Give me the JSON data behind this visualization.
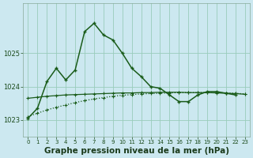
{
  "background_color": "#cce8f0",
  "grid_color": "#99ccbb",
  "line_color": "#1a5c1a",
  "xlabel": "Graphe pression niveau de la mer (hPa)",
  "xlabel_fontsize": 7.5,
  "yticks": [
    1023,
    1024,
    1025
  ],
  "xticks": [
    0,
    1,
    2,
    3,
    4,
    5,
    6,
    7,
    8,
    9,
    10,
    11,
    12,
    13,
    14,
    15,
    16,
    17,
    18,
    19,
    20,
    21,
    22,
    23
  ],
  "xlim": [
    -0.5,
    23.5
  ],
  "ylim": [
    1022.5,
    1026.5
  ],
  "series_main": {
    "x": [
      0,
      1,
      2,
      3,
      4,
      5,
      6,
      7,
      8,
      9,
      10,
      11,
      12,
      13,
      14,
      15,
      16,
      17,
      18,
      19,
      20,
      21,
      22
    ],
    "y": [
      1023.05,
      1023.35,
      1024.15,
      1024.55,
      1024.2,
      1024.5,
      1025.65,
      1025.9,
      1025.55,
      1025.4,
      1025.0,
      1024.55,
      1024.3,
      1024.0,
      1023.95,
      1023.75,
      1023.55,
      1023.55,
      1023.75,
      1023.85,
      1023.85,
      1023.8,
      1023.75
    ]
  },
  "series_flat": {
    "x": [
      0,
      1,
      2,
      3,
      4,
      5,
      6,
      7,
      8,
      9,
      10,
      11,
      12,
      13,
      14,
      15,
      16,
      17,
      18,
      19,
      20,
      21,
      22,
      23
    ],
    "y": [
      1023.65,
      1023.68,
      1023.71,
      1023.73,
      1023.75,
      1023.76,
      1023.77,
      1023.78,
      1023.79,
      1023.8,
      1023.81,
      1023.81,
      1023.82,
      1023.82,
      1023.83,
      1023.83,
      1023.83,
      1023.82,
      1023.82,
      1023.82,
      1023.81,
      1023.8,
      1023.79,
      1023.77
    ]
  },
  "series_rising": {
    "x": [
      0,
      1,
      2,
      3,
      4,
      5,
      6,
      7,
      8,
      9,
      10,
      11,
      12,
      13,
      14,
      15,
      16,
      17,
      18,
      19,
      20,
      21,
      22,
      23
    ],
    "y": [
      1023.1,
      1023.2,
      1023.3,
      1023.38,
      1023.45,
      1023.52,
      1023.58,
      1023.63,
      1023.67,
      1023.71,
      1023.74,
      1023.76,
      1023.78,
      1023.79,
      1023.8,
      1023.81,
      1023.82,
      1023.82,
      1023.82,
      1023.82,
      1023.82,
      1023.81,
      1023.8,
      1023.78
    ]
  }
}
